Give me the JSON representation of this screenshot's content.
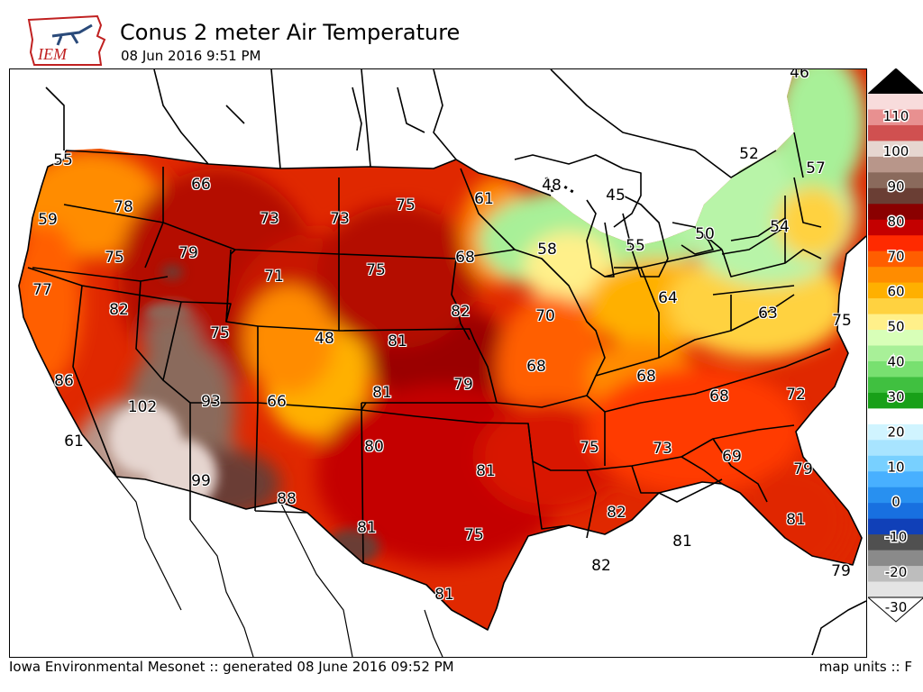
{
  "header": {
    "logo_text": "IEM",
    "title": "Conus 2 meter Air Temperature",
    "subtitle": "08 Jun 2016 9:51 PM"
  },
  "footer": {
    "generated": "Iowa Environmental Mesonet :: generated 08 June 2016 09:52 PM",
    "units": "map units :: F"
  },
  "legend": {
    "ticks": [
      "110",
      "100",
      "90",
      "80",
      "70",
      "60",
      "50",
      "40",
      "30",
      "20",
      "10",
      "0",
      "-10",
      "-20",
      "-30"
    ],
    "colors": [
      "#f8dcdc",
      "#e89090",
      "#d05050",
      "#e6d6d0",
      "#b8968a",
      "#8a6a5c",
      "#6a3e34",
      "#8a0000",
      "#c40000",
      "#ff2a00",
      "#ff5e00",
      "#ff8c00",
      "#ffb000",
      "#ffd240",
      "#fff08a",
      "#d8ffb8",
      "#a8f098",
      "#78e070",
      "#40c040",
      "#18a018",
      "#ffffff",
      "#d0f4ff",
      "#a8e4ff",
      "#78d0ff",
      "#48b0ff",
      "#2890f0",
      "#1870e0",
      "#1040b8",
      "#505050",
      "#8a8a8a",
      "#bdbdbd",
      "#e4e4e4"
    ],
    "top_arrow_color": "#000000",
    "bottom_arrow_color": "#ffffff"
  },
  "temperature_labels": [
    {
      "value": "46"
    },
    {
      "value": "55"
    },
    {
      "value": "59"
    },
    {
      "value": "78"
    },
    {
      "value": "66"
    },
    {
      "value": "73"
    },
    {
      "value": "73"
    },
    {
      "value": "75"
    },
    {
      "value": "61"
    },
    {
      "value": "48"
    },
    {
      "value": "45"
    },
    {
      "value": "52"
    },
    {
      "value": "57"
    },
    {
      "value": "75"
    },
    {
      "value": "79"
    },
    {
      "value": "71"
    },
    {
      "value": "75"
    },
    {
      "value": "68"
    },
    {
      "value": "58"
    },
    {
      "value": "55"
    },
    {
      "value": "50"
    },
    {
      "value": "54"
    },
    {
      "value": "77"
    },
    {
      "value": "82"
    },
    {
      "value": "82"
    },
    {
      "value": "70"
    },
    {
      "value": "64"
    },
    {
      "value": "63"
    },
    {
      "value": "75"
    },
    {
      "value": "75"
    },
    {
      "value": "48"
    },
    {
      "value": "81"
    },
    {
      "value": "86"
    },
    {
      "value": "68"
    },
    {
      "value": "68"
    },
    {
      "value": "102"
    },
    {
      "value": "93"
    },
    {
      "value": "66"
    },
    {
      "value": "81"
    },
    {
      "value": "79"
    },
    {
      "value": "68"
    },
    {
      "value": "72"
    },
    {
      "value": "61"
    },
    {
      "value": "80"
    },
    {
      "value": "75"
    },
    {
      "value": "73"
    },
    {
      "value": "69"
    },
    {
      "value": "99"
    },
    {
      "value": "81"
    },
    {
      "value": "79"
    },
    {
      "value": "88"
    },
    {
      "value": "82"
    },
    {
      "value": "81"
    },
    {
      "value": "81"
    },
    {
      "value": "75"
    },
    {
      "value": "81"
    },
    {
      "value": "82"
    },
    {
      "value": "79"
    },
    {
      "value": "81"
    }
  ]
}
